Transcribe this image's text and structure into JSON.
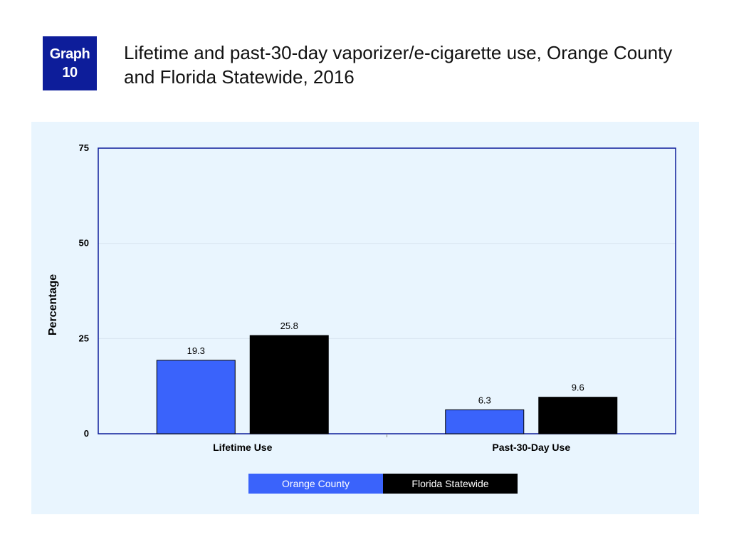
{
  "badge": {
    "line1": "Graph",
    "line2": "10"
  },
  "colors": {
    "orange_county": "#3a63fb",
    "florida": "#000000",
    "panel_bg": "#e9f5fe",
    "axis": "#0d1d9a"
  },
  "chart_data": {
    "type": "bar",
    "title": "Lifetime and past-30-day vaporizer/e-cigarette use, Orange County and Florida Statewide, 2016",
    "categories": [
      "Lifetime Use",
      "Past-30-Day Use"
    ],
    "series": [
      {
        "name": "Orange County",
        "values": [
          19.3,
          6.3
        ]
      },
      {
        "name": "Florida Statewide",
        "values": [
          25.8,
          9.6
        ]
      }
    ],
    "ylabel": "Percentage",
    "xlabel": "",
    "ylim": [
      0,
      75
    ],
    "yticks": [
      0,
      25,
      50,
      75
    ],
    "grid": true,
    "legend": "bottom"
  }
}
